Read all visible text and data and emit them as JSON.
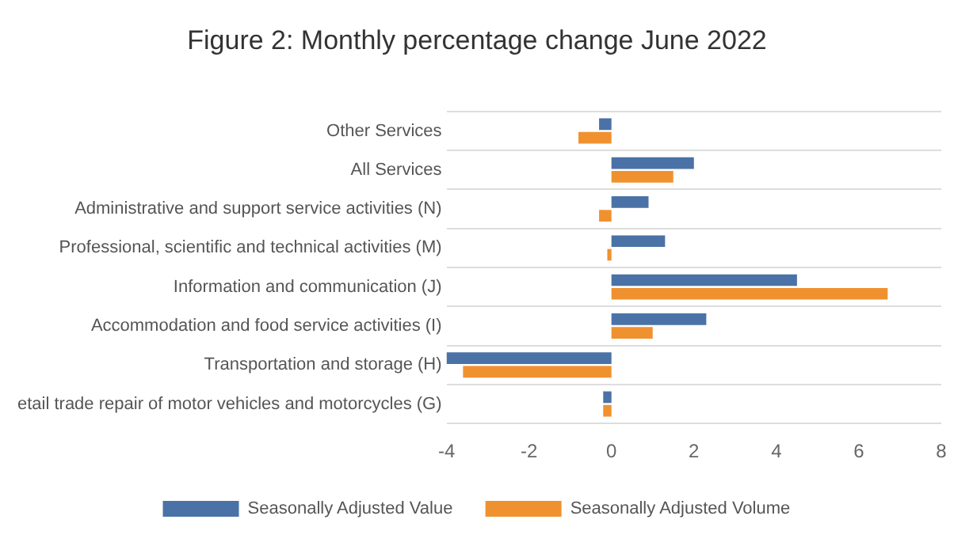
{
  "chart_data": {
    "type": "bar",
    "orientation": "horizontal",
    "title": "Figure 2: Monthly percentage change June 2022",
    "categories": [
      "Other Services",
      "All Services",
      "Administrative and support service activities (N)",
      "Professional, scientific and technical activities (M)",
      "Information and communication (J)",
      "Accommodation and food service activities (I)",
      "Transportation and storage (H)",
      "etail trade repair of motor vehicles and motorcycles (G)"
    ],
    "series": [
      {
        "name": "Seasonally Adjusted Value",
        "color": "#4a72a6",
        "values": [
          -0.3,
          2.0,
          0.9,
          1.3,
          4.5,
          2.3,
          -4.0,
          -0.2
        ]
      },
      {
        "name": "Seasonally Adjusted Volume",
        "color": "#f0912f",
        "values": [
          -0.8,
          1.5,
          -0.3,
          -0.1,
          6.7,
          1.0,
          -3.6,
          -0.2
        ]
      }
    ],
    "xlim": [
      -4,
      8
    ],
    "xticks": [
      -4,
      -2,
      0,
      2,
      4,
      6,
      8
    ],
    "grid": "y",
    "legend": "bottom"
  }
}
